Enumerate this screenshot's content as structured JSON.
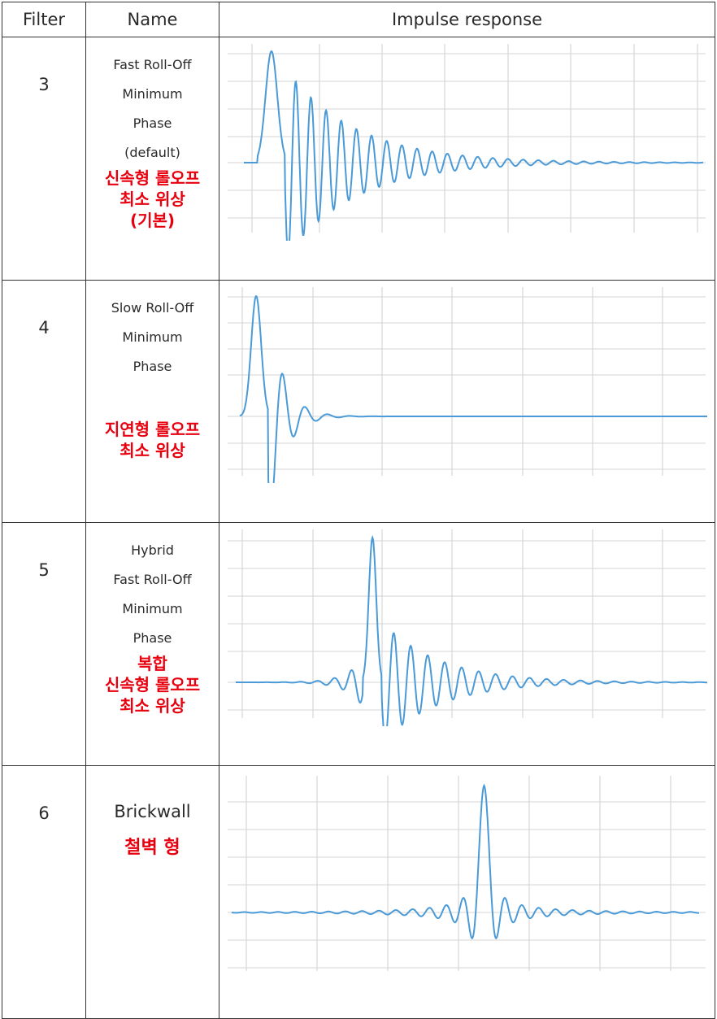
{
  "table": {
    "headers": [
      "Filter",
      "Name",
      "Impulse response"
    ],
    "rows": [
      {
        "filter": "3",
        "name_lines": [
          "Fast Roll-Off",
          "Minimum",
          "Phase",
          "(default)"
        ],
        "korean_lines": [
          "신속형 롤오프",
          "최소 위상",
          "(기본)"
        ]
      },
      {
        "filter": "4",
        "name_lines": [
          "Slow Roll-Off",
          "Minimum",
          "Phase"
        ],
        "korean_lines": [
          "지연형 롤오프",
          "최소 위상"
        ]
      },
      {
        "filter": "5",
        "name_lines": [
          "Hybrid",
          "Fast Roll-Off",
          "Minimum",
          "Phase"
        ],
        "korean_lines": [
          "복합",
          "신속형 롤오프",
          "최소 위상"
        ]
      },
      {
        "filter": "6",
        "name_lines": [
          "Brickwall"
        ],
        "korean_lines": [
          "철벽 형"
        ]
      }
    ]
  },
  "chart_data": [
    {
      "type": "line",
      "response": "fast-minimum-phase",
      "peak_position": 0.06,
      "first_trough": -0.9,
      "ring_decay": 0.15,
      "ring_period": 0.033,
      "grid": true,
      "line_color": "#4a9ad8"
    },
    {
      "type": "line",
      "response": "slow-minimum-phase",
      "peak_position": 0.04,
      "first_trough": -0.8,
      "ring_decay": 0.6,
      "ring_period": 0.05,
      "grid": true,
      "line_color": "#4a9ad8"
    },
    {
      "type": "line",
      "response": "hybrid-minimum-phase",
      "peak_position": 0.29,
      "pre_ringing": true,
      "ring_decay": 0.2,
      "ring_period": 0.035,
      "grid": true,
      "line_color": "#4a9ad8"
    },
    {
      "type": "line",
      "response": "brickwall-linear-phase",
      "peak_position": 0.54,
      "symmetric": true,
      "ring_period": 0.036,
      "grid": true,
      "line_color": "#4a9ad8"
    }
  ]
}
